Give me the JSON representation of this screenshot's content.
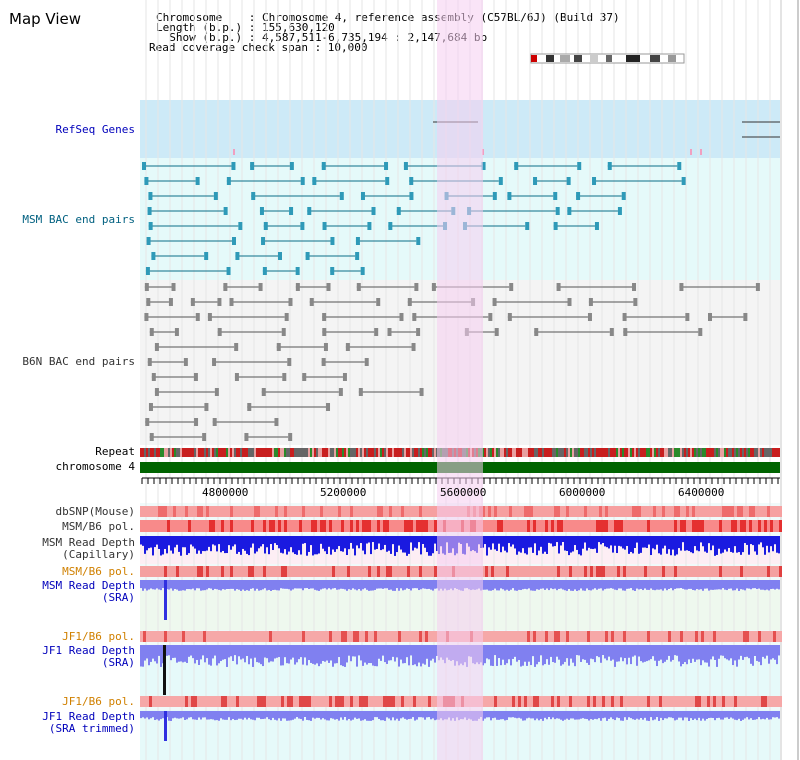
{
  "title": "Map View",
  "info": {
    "line1": "Chromosome    : Chromosome 4, reference assembly (C57BL/6J) (Build 37)",
    "line2": "Length (b.p.) : 155,630,120",
    "line3": "  Show (b.p.) : 4,587,511-6,735,194 : 2,147,684 bp",
    "line4": "Read coverage check span : 10,000"
  },
  "tracks": {
    "refseq": "RefSeq Genes",
    "msm_bac": "MSM BAC end pairs",
    "b6n_bac": "B6N BAC end pairs",
    "repeat": "Repeat",
    "chromosome": "chromosome 4",
    "dbsnp": "dbSNP(Mouse)",
    "msm_b6_pol": "MSM/B6 pol.",
    "msm_depth_cap_1": "MSM Read Depth",
    "msm_depth_cap_2": "(Capillary)",
    "msm_b6_pol2": "MSM/B6 pol.",
    "msm_depth_sra_1": "MSM Read Depth",
    "msm_depth_sra_2": "(SRA)",
    "jf1_b6_pol": "JF1/B6 pol.",
    "jf1_depth_sra_1": "JF1 Read Depth",
    "jf1_depth_sra_2": "(SRA)",
    "jf1_b6_pol2": "JF1/B6 pol.",
    "jf1_depth_trim_1": "JF1 Read Depth",
    "jf1_depth_trim_2": "(SRA trimmed)"
  },
  "axis_ticks": [
    "4800000",
    "5200000",
    "5600000",
    "6000000",
    "6400000"
  ],
  "colors": {
    "refseq_bg": "#cdeaf7",
    "msm_bg": "#e5fafa",
    "b6n_bg": "#f4f4f4",
    "highlight": "#f5cdf0",
    "chromosome_bar": "#006400",
    "gene_dark": "#06306a",
    "gene_mid": "#3f8fb8",
    "gene_green": "#057005",
    "read_depth_cap": "#1a1ae0",
    "read_depth_sra": "#8080f0"
  }
}
